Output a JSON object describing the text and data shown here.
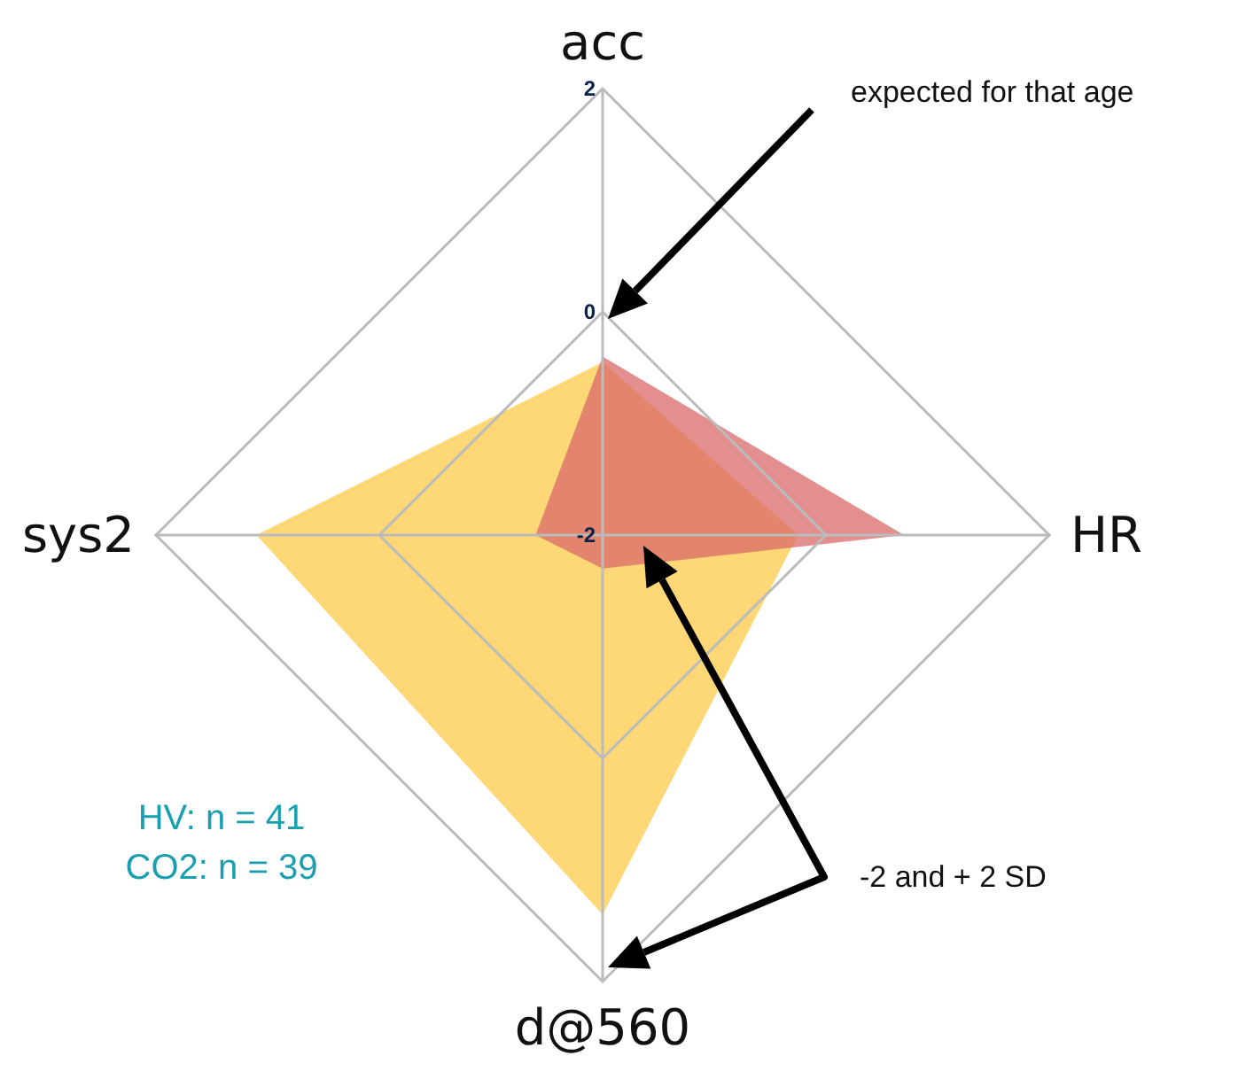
{
  "chart_data": {
    "type": "radar",
    "categories": [
      "acc",
      "HR",
      "d@560",
      "sys2"
    ],
    "ylim": [
      -2,
      2
    ],
    "yticks": [
      -2,
      0,
      2
    ],
    "series": [
      {
        "color": "#fdc94a",
        "values": [
          -0.45,
          -0.25,
          1.4,
          1.1
        ]
      },
      {
        "color": "#d9686a",
        "values": [
          -0.4,
          0.7,
          -1.7,
          -1.4
        ]
      }
    ],
    "annotations": [
      "expected for that age",
      "-2 and + 2 SD",
      "HV: n = 41",
      "CO2: n = 39"
    ]
  }
}
